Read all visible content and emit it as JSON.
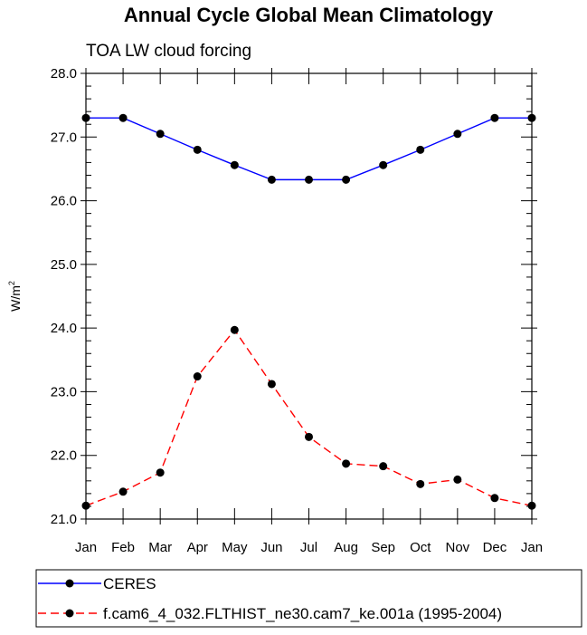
{
  "chart_data": {
    "type": "line",
    "title": "Annual Cycle Global Mean Climatology",
    "subtitle": "TOA LW cloud forcing",
    "ylabel": "W/m",
    "ylabel_superscript": "2",
    "xlabel": "",
    "categories": [
      "Jan",
      "Feb",
      "Mar",
      "Apr",
      "May",
      "Jun",
      "Jul",
      "Aug",
      "Sep",
      "Oct",
      "Nov",
      "Dec",
      "Jan"
    ],
    "yticks": [
      "21.0",
      "22.0",
      "23.0",
      "24.0",
      "25.0",
      "26.0",
      "27.0",
      "28.0"
    ],
    "ylim": [
      21.0,
      28.0
    ],
    "grid": false,
    "legend_position": "bottom",
    "series": [
      {
        "name": "CERES",
        "color": "#0000ff",
        "dash": "solid",
        "marker": "circle",
        "values": [
          27.3,
          27.3,
          27.05,
          26.8,
          26.56,
          26.33,
          26.33,
          26.33,
          26.56,
          26.8,
          27.05,
          27.3,
          27.3
        ]
      },
      {
        "name": "f.cam6_4_032.FLTHIST_ne30.cam7_ke.001a (1995-2004)",
        "color": "#ff0000",
        "dash": "dashed",
        "marker": "circle",
        "values": [
          21.21,
          21.43,
          21.73,
          23.24,
          23.97,
          23.12,
          22.29,
          21.87,
          21.83,
          21.55,
          21.62,
          21.33,
          21.21
        ]
      }
    ]
  }
}
